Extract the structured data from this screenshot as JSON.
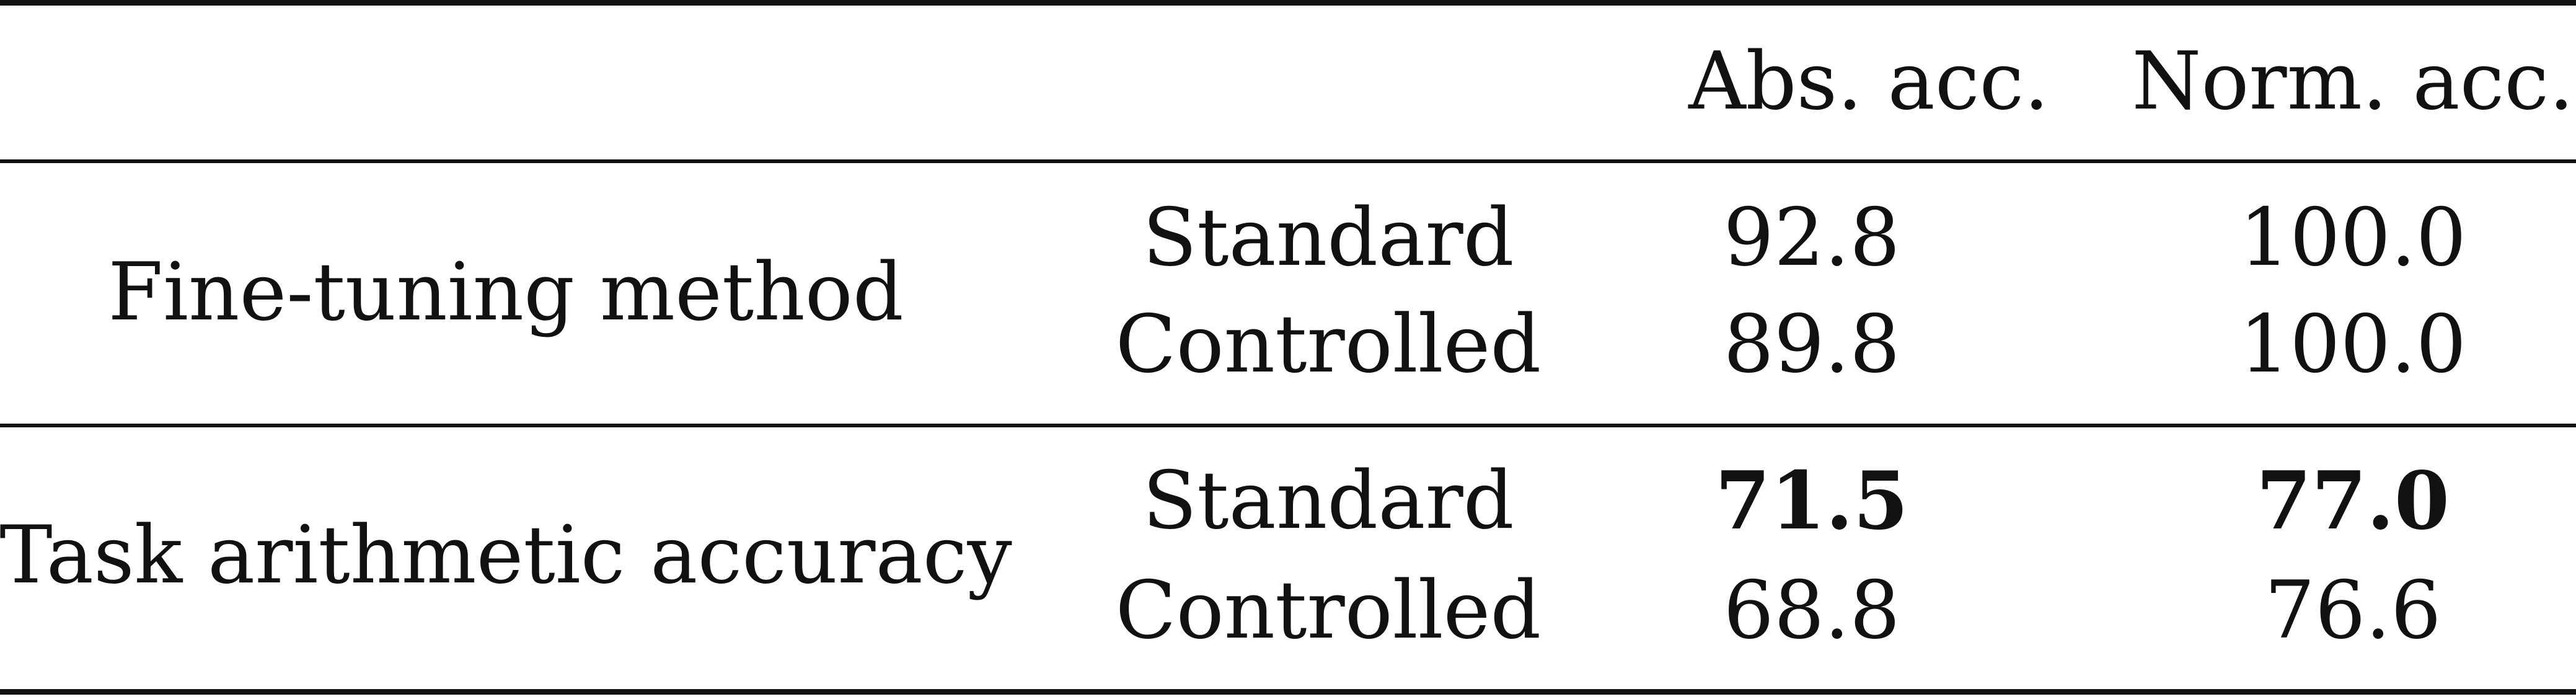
{
  "table": {
    "headers": [
      "",
      "",
      "Abs. acc.",
      "Norm. acc."
    ],
    "groups": [
      {
        "label": "Fine-tuning method",
        "rows": [
          {
            "method": "Standard",
            "abs": "92.8",
            "norm": "100.0",
            "bold": false
          },
          {
            "method": "Controlled",
            "abs": "89.8",
            "norm": "100.0",
            "bold": false
          }
        ]
      },
      {
        "label": "Task arithmetic accuracy",
        "rows": [
          {
            "method": "Standard",
            "abs": "71.5",
            "norm": "77.0",
            "bold": true
          },
          {
            "method": "Controlled",
            "abs": "68.8",
            "norm": "76.6",
            "bold": false
          }
        ]
      }
    ]
  }
}
